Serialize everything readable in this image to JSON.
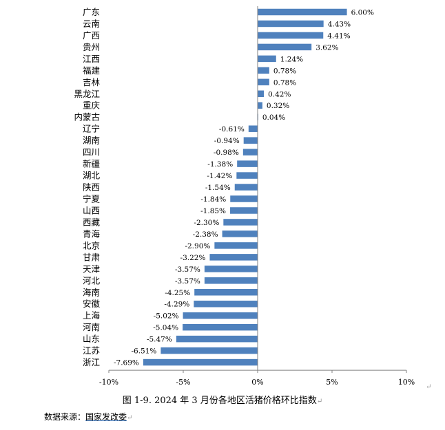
{
  "chart_data": {
    "type": "bar",
    "orientation": "horizontal",
    "categories": [
      "广东",
      "云南",
      "广西",
      "贵州",
      "江西",
      "福建",
      "吉林",
      "黑龙江",
      "重庆",
      "内蒙古",
      "辽宁",
      "湖南",
      "四川",
      "新疆",
      "湖北",
      "陕西",
      "宁夏",
      "山西",
      "西藏",
      "青海",
      "北京",
      "甘肃",
      "天津",
      "河北",
      "海南",
      "安徽",
      "上海",
      "河南",
      "山东",
      "江苏",
      "浙江"
    ],
    "values": [
      6.0,
      4.43,
      4.41,
      3.62,
      1.24,
      0.78,
      0.78,
      0.42,
      0.32,
      0.04,
      -0.61,
      -0.94,
      -0.98,
      -1.38,
      -1.42,
      -1.54,
      -1.84,
      -1.85,
      -2.3,
      -2.38,
      -2.9,
      -3.22,
      -3.57,
      -3.57,
      -4.25,
      -4.29,
      -5.02,
      -5.04,
      -5.47,
      -6.51,
      -7.69
    ],
    "value_labels": [
      "6.00%",
      "4.43%",
      "4.41%",
      "3.62%",
      "1.24%",
      "0.78%",
      "0.78%",
      "0.42%",
      "0.32%",
      "0.04%",
      "-0.61%",
      "-0.94%",
      "-0.98%",
      "-1.38%",
      "-1.42%",
      "-1.54%",
      "-1.84%",
      "-1.85%",
      "-2.30%",
      "-2.38%",
      "-2.90%",
      "-3.22%",
      "-3.57%",
      "-3.57%",
      "-4.25%",
      "-4.29%",
      "-5.02%",
      "-5.04%",
      "-5.47%",
      "-6.51%",
      "-7.69%"
    ],
    "xlim": [
      -10,
      10
    ],
    "xticks": [
      -10,
      -5,
      0,
      5,
      10
    ],
    "xtick_labels": [
      "-10%",
      "-5%",
      "0%",
      "5%",
      "10%"
    ],
    "grid": false,
    "bar_color": "#4f81bd"
  },
  "caption": "图 1-9. 2024 年 3 月份各地区活猪价格环比指数",
  "source_prefix": "数据来源：",
  "source_name": "国家发改委",
  "return_mark": "↵"
}
